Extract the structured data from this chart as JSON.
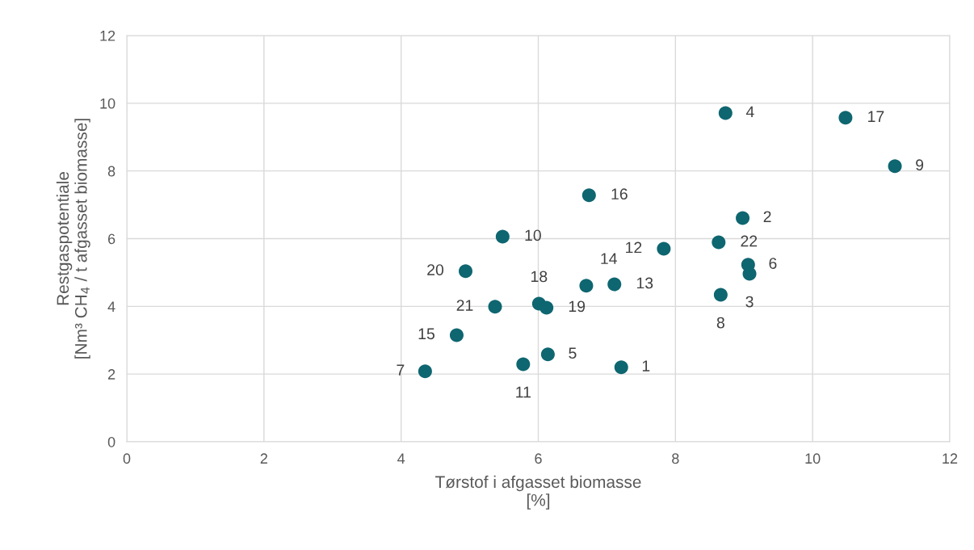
{
  "chart_data": {
    "type": "scatter",
    "xlabel": "Tørstof i afgasset biomasse\n[%]",
    "ylabel": "Restgaspotentiale\n[Nm³ CH$_{4}$ / t afgasset biomasse]",
    "x": [
      8.73,
      10.48,
      11.2,
      6.74,
      8.98,
      5.48,
      7.83,
      8.63,
      9.06,
      4.94,
      9.08,
      6.7,
      7.11,
      8.66,
      6.01,
      6.12,
      5.37,
      4.81,
      6.14,
      5.78,
      7.21,
      4.35
    ],
    "series": [
      {
        "color": "#0e6670",
        "values": [
          9.71,
          9.57,
          8.14,
          7.28,
          6.61,
          6.06,
          5.7,
          5.89,
          5.23,
          5.04,
          4.96,
          4.61,
          4.65,
          4.34,
          4.08,
          3.96,
          3.99,
          3.15,
          2.58,
          2.29,
          2.2,
          2.08
        ]
      }
    ],
    "annotations": [
      {
        "text": "4",
        "x": 8.73,
        "y": 9.71
      },
      {
        "text": "17",
        "x": 10.48,
        "y": 9.57
      },
      {
        "text": "9",
        "x": 11.2,
        "y": 8.14
      },
      {
        "text": "16",
        "x": 6.74,
        "y": 7.28
      },
      {
        "text": "2",
        "x": 8.98,
        "y": 6.61
      },
      {
        "text": "10",
        "x": 5.48,
        "y": 6.06
      },
      {
        "text": "12",
        "x": 7.83,
        "y": 5.7
      },
      {
        "text": "22",
        "x": 8.63,
        "y": 5.89
      },
      {
        "text": "6",
        "x": 9.06,
        "y": 5.23
      },
      {
        "text": "20",
        "x": 4.94,
        "y": 5.04
      },
      {
        "text": "3",
        "x": 9.08,
        "y": 4.96
      },
      {
        "text": "14",
        "x": 6.7,
        "y": 4.61
      },
      {
        "text": "13",
        "x": 7.11,
        "y": 4.65
      },
      {
        "text": "8",
        "x": 8.66,
        "y": 4.34
      },
      {
        "text": "18",
        "x": 6.01,
        "y": 4.08
      },
      {
        "text": "19",
        "x": 6.12,
        "y": 3.96
      },
      {
        "text": "21",
        "x": 5.37,
        "y": 3.99
      },
      {
        "text": "15",
        "x": 4.81,
        "y": 3.15
      },
      {
        "text": "5",
        "x": 6.14,
        "y": 2.58
      },
      {
        "text": "11",
        "x": 5.78,
        "y": 2.29
      },
      {
        "text": "1",
        "x": 7.21,
        "y": 2.2
      },
      {
        "text": "7",
        "x": 4.35,
        "y": 2.08
      }
    ],
    "xlim": [
      0,
      12
    ],
    "xticks": [
      0,
      2,
      4,
      6,
      8,
      10,
      12
    ],
    "ylim": [
      0,
      12
    ],
    "yticks": [
      0,
      2,
      4,
      6,
      8,
      10,
      12
    ],
    "grid": true,
    "marker": "circle",
    "legend": false
  }
}
